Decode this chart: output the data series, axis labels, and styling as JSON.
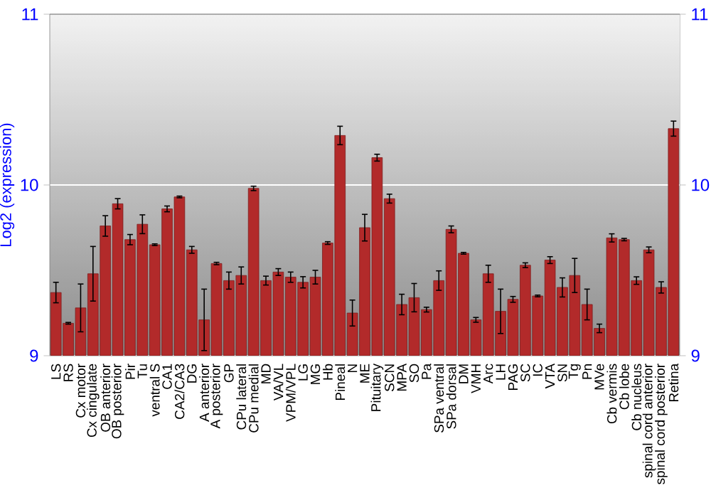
{
  "chart_data": {
    "type": "bar",
    "ylabel": "Log2 (expression)",
    "categories": [
      "LS",
      "RS",
      "Cx motor",
      "Cx cingulate",
      "OB anterior",
      "OB posterior",
      "Pir",
      "Tu",
      "ventral S",
      "CA1",
      "CA2/CA3",
      "DG",
      "A anterior",
      "A posterior",
      "GP",
      "CPu lateral",
      "CPu medial",
      "MD",
      "VA/VL",
      "VPM/VPL",
      "LG",
      "MG",
      "Hb",
      "Pineal",
      "N",
      "ME",
      "Pituitary",
      "SCN",
      "MPA",
      "SO",
      "Pa",
      "SPa ventral",
      "SPa dorsal",
      "DM",
      "VMH",
      "Arc",
      "LH",
      "PAG",
      "SC",
      "IC",
      "VTA",
      "SN",
      "Tg",
      "Pn",
      "MVe",
      "Cb vermis",
      "Cb lobe",
      "Cb nucleus",
      "spinal cord anterior",
      "spinal cord posterior",
      "Retina"
    ],
    "values": [
      9.37,
      9.19,
      9.28,
      9.48,
      9.76,
      9.89,
      9.68,
      9.77,
      9.65,
      9.86,
      9.93,
      9.62,
      9.21,
      9.54,
      9.44,
      9.47,
      9.98,
      9.44,
      9.49,
      9.46,
      9.43,
      9.46,
      9.66,
      10.29,
      9.25,
      9.75,
      10.16,
      9.92,
      9.3,
      9.34,
      9.27,
      9.44,
      9.74,
      9.6,
      9.21,
      9.48,
      9.26,
      9.33,
      9.53,
      9.35,
      9.56,
      9.4,
      9.47,
      9.3,
      9.16,
      9.69,
      9.68,
      9.44,
      9.62,
      9.4,
      10.33
    ],
    "errors": [
      0.06,
      0.005,
      0.14,
      0.16,
      0.06,
      0.03,
      0.03,
      0.055,
      0.005,
      0.017,
      0.005,
      0.02,
      0.18,
      0.007,
      0.05,
      0.05,
      0.013,
      0.026,
      0.02,
      0.03,
      0.033,
      0.04,
      0.008,
      0.054,
      0.076,
      0.078,
      0.02,
      0.026,
      0.06,
      0.083,
      0.014,
      0.057,
      0.02,
      0.005,
      0.014,
      0.05,
      0.13,
      0.017,
      0.014,
      0.005,
      0.02,
      0.056,
      0.1,
      0.09,
      0.025,
      0.024,
      0.007,
      0.022,
      0.017,
      0.033,
      0.044
    ],
    "color": "#b22a2a",
    "ylim": [
      9,
      11
    ],
    "yticks": [
      9,
      10,
      11
    ],
    "y2lim": [
      9,
      11
    ],
    "y2ticks": [
      9,
      10,
      11
    ],
    "grid": "y"
  }
}
